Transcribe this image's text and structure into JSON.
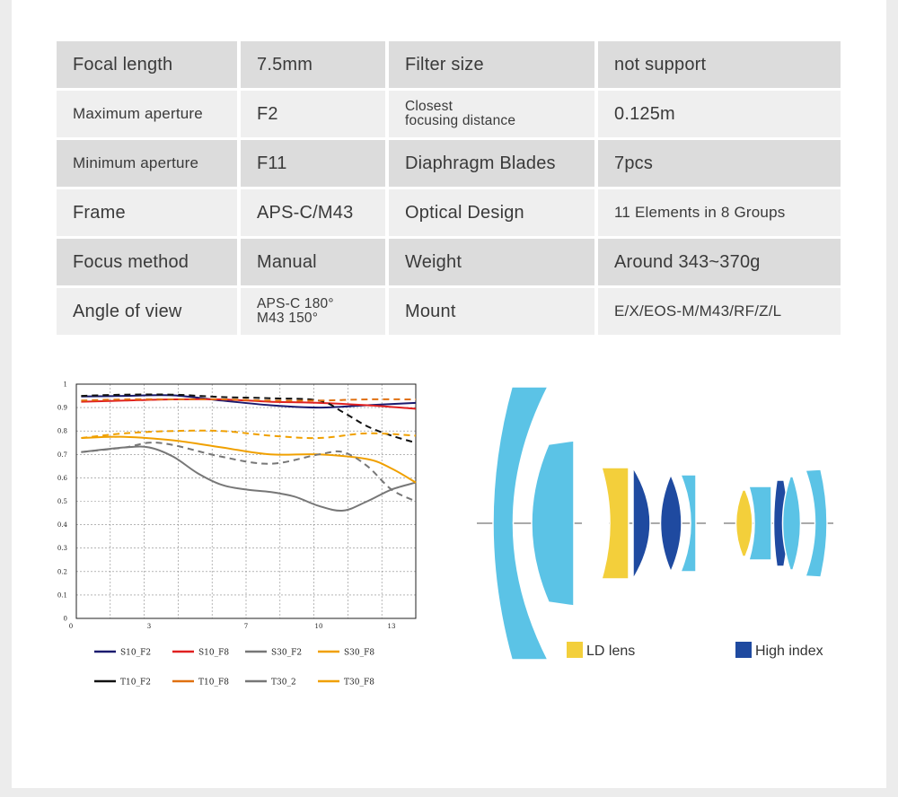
{
  "specs": [
    {
      "shade": "shade",
      "cells": [
        {
          "label": "Focal length",
          "size": ""
        },
        {
          "label": "7.5mm",
          "size": ""
        },
        {
          "label": "Filter size",
          "size": ""
        },
        {
          "label": "not support",
          "size": ""
        }
      ]
    },
    {
      "shade": "light",
      "cells": [
        {
          "label": "Maximum aperture",
          "size": "small"
        },
        {
          "label": "F2",
          "size": ""
        },
        {
          "lines": [
            "Closest",
            "focusing distance"
          ],
          "size": "two"
        },
        {
          "label": "0.125m",
          "size": ""
        }
      ]
    },
    {
      "shade": "shade",
      "cells": [
        {
          "label": "Minimum aperture",
          "size": "small"
        },
        {
          "label": "F11",
          "size": ""
        },
        {
          "label": "Diaphragm Blades",
          "size": ""
        },
        {
          "label": "7pcs",
          "size": ""
        }
      ]
    },
    {
      "shade": "light",
      "cells": [
        {
          "label": "Frame",
          "size": ""
        },
        {
          "label": "APS-C/M43",
          "size": ""
        },
        {
          "label": "Optical Design",
          "size": ""
        },
        {
          "label": "11 Elements in 8 Groups",
          "size": "small"
        }
      ]
    },
    {
      "shade": "shade",
      "cells": [
        {
          "label": "Focus method",
          "size": ""
        },
        {
          "label": "Manual",
          "size": ""
        },
        {
          "label": "Weight",
          "size": ""
        },
        {
          "label": "Around 343~370g",
          "size": ""
        }
      ]
    },
    {
      "shade": "light",
      "cells": [
        {
          "label": "Angle of view",
          "size": ""
        },
        {
          "lines": [
            "APS-C 180°",
            "M43 150°"
          ],
          "size": "two"
        },
        {
          "label": "Mount",
          "size": ""
        },
        {
          "label": "E/X/EOS-M/M43/RF/Z/L",
          "size": "small"
        }
      ]
    }
  ],
  "chart_data": {
    "type": "line",
    "xlim": [
      0,
      14
    ],
    "ylim": [
      0,
      1
    ],
    "x_ticks": [
      "0",
      "3",
      "7",
      "10",
      "13"
    ],
    "x_tick_values": [
      0,
      3,
      7,
      10,
      13
    ],
    "y_ticks": [
      "0",
      "0.1",
      "0.2",
      "0.3",
      "0.4",
      "0.5",
      "0.6",
      "0.7",
      "0.8",
      "0.9",
      "1"
    ],
    "grid": true,
    "series": [
      {
        "name": "S10_F2",
        "color": "#1a1a6e",
        "dash": false,
        "x": [
          0.2,
          2,
          4,
          6,
          8,
          10,
          12,
          14
        ],
        "y": [
          0.947,
          0.95,
          0.952,
          0.93,
          0.91,
          0.9,
          0.91,
          0.92
        ]
      },
      {
        "name": "S10_F8",
        "color": "#e02020",
        "dash": false,
        "x": [
          0.2,
          2,
          4,
          6,
          8,
          10,
          12,
          14
        ],
        "y": [
          0.925,
          0.93,
          0.935,
          0.935,
          0.925,
          0.92,
          0.91,
          0.895
        ]
      },
      {
        "name": "S30_F2",
        "color": "#777777",
        "dash": false,
        "x": [
          0.2,
          2,
          3,
          4,
          5,
          6,
          7,
          8,
          9,
          10,
          11,
          12,
          13,
          14
        ],
        "y": [
          0.71,
          0.73,
          0.73,
          0.69,
          0.62,
          0.57,
          0.55,
          0.54,
          0.52,
          0.48,
          0.46,
          0.5,
          0.55,
          0.58
        ]
      },
      {
        "name": "S30_F8",
        "color": "#f0a000",
        "dash": false,
        "x": [
          0.2,
          2,
          4,
          6,
          8,
          10,
          12,
          13,
          14
        ],
        "y": [
          0.77,
          0.775,
          0.76,
          0.73,
          0.7,
          0.7,
          0.68,
          0.64,
          0.58
        ]
      },
      {
        "name": "T10_F2",
        "color": "#111111",
        "dash": true,
        "x": [
          0.2,
          2,
          4,
          6,
          8,
          10,
          11,
          12,
          13,
          14
        ],
        "y": [
          0.95,
          0.955,
          0.955,
          0.945,
          0.94,
          0.93,
          0.88,
          0.82,
          0.78,
          0.75
        ]
      },
      {
        "name": "T10_F8",
        "color": "#e07010",
        "dash": true,
        "x": [
          0.2,
          2,
          4,
          6,
          8,
          10,
          12,
          14
        ],
        "y": [
          0.93,
          0.935,
          0.935,
          0.935,
          0.93,
          0.93,
          0.935,
          0.935
        ]
      },
      {
        "name": "T30_2",
        "color": "#777777",
        "dash": true,
        "x": [
          0.2,
          2,
          3,
          4,
          6,
          8,
          10,
          11,
          12,
          13,
          14
        ],
        "y": [
          0.71,
          0.73,
          0.75,
          0.74,
          0.69,
          0.66,
          0.7,
          0.71,
          0.65,
          0.55,
          0.5
        ]
      },
      {
        "name": "T30_F8",
        "color": "#f0a000",
        "dash": true,
        "x": [
          0.2,
          2,
          4,
          6,
          8,
          10,
          12,
          14
        ],
        "y": [
          0.77,
          0.79,
          0.8,
          0.8,
          0.78,
          0.77,
          0.79,
          0.78
        ]
      }
    ]
  },
  "diagram": {
    "legend": [
      {
        "label": "LD lens",
        "color": "#f3cf3b"
      },
      {
        "label": "High index",
        "color": "#1f4aa0"
      }
    ],
    "colors": {
      "standard": "#5bc3e6",
      "ld": "#f3cf3b",
      "high": "#1f4aa0"
    }
  }
}
